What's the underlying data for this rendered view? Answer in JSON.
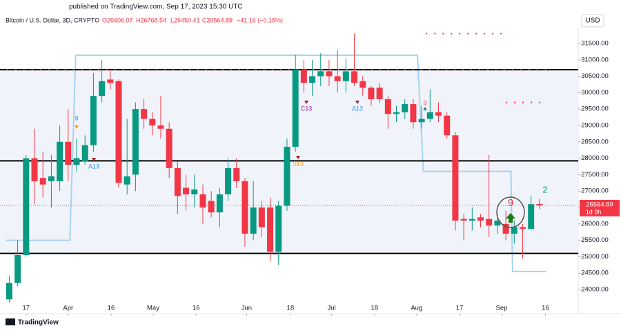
{
  "header": {
    "published": "published on TradingView.com, Sep 17, 2023 15:30 UTC",
    "symbol": "Bitcoin / U.S. Dollar, 3D, CRYPTO",
    "open": "O26606.07",
    "high": "H26768.54",
    "low": "L26450.41",
    "close": "C26564.89",
    "change": "−41.16 (−0.15%)",
    "currency": "USD"
  },
  "footer": {
    "brand": "TradingView"
  },
  "chart_data": {
    "type": "candlestick",
    "up_color": "#089981",
    "down_color": "#f23645",
    "xlim": [
      -1.1,
      67.6
    ],
    "ylim": [
      23265,
      32403
    ],
    "xticks": [
      {
        "value": 2,
        "label": "17"
      },
      {
        "value": 7,
        "label": "Apr"
      },
      {
        "value": 12.1,
        "label": "16"
      },
      {
        "value": 17.1,
        "label": "May"
      },
      {
        "value": 22.2,
        "label": "16"
      },
      {
        "value": 28.2,
        "label": "Jun"
      },
      {
        "value": 33.4,
        "label": "18"
      },
      {
        "value": 38.3,
        "label": "Jul"
      },
      {
        "value": 43.4,
        "label": "18"
      },
      {
        "value": 48.4,
        "label": "Aug"
      },
      {
        "value": 53.5,
        "label": "17"
      },
      {
        "value": 58.5,
        "label": "Sep"
      },
      {
        "value": 63.7,
        "label": "16"
      }
    ],
    "yticks": [
      {
        "value": 24000,
        "label": "24000.00"
      },
      {
        "value": 24500,
        "label": "24500.00"
      },
      {
        "value": 25000,
        "label": "25000.00"
      },
      {
        "value": 25500,
        "label": "25500.00"
      },
      {
        "value": 26000,
        "label": "26000.00"
      },
      {
        "value": 26500,
        "label": "26500.00"
      },
      {
        "value": 27000,
        "label": "27000.00"
      },
      {
        "value": 27500,
        "label": "27500.00"
      },
      {
        "value": 28000,
        "label": "28000.00"
      },
      {
        "value": 28500,
        "label": "28500.00"
      },
      {
        "value": 29000,
        "label": "29000.00"
      },
      {
        "value": 29500,
        "label": "29500.00"
      },
      {
        "value": 30000,
        "label": "30000.00"
      },
      {
        "value": 30500,
        "label": "30500.00"
      },
      {
        "value": 31000,
        "label": "31000.00"
      },
      {
        "value": 31500,
        "label": "31500.00"
      }
    ],
    "candles": [
      {
        "o": 23700,
        "h": 24400,
        "l": 23600,
        "c": 24200
      },
      {
        "o": 24200,
        "h": 25500,
        "l": 24100,
        "c": 25050
      },
      {
        "o": 25050,
        "h": 28100,
        "l": 25000,
        "c": 28000
      },
      {
        "o": 28000,
        "h": 28900,
        "l": 26600,
        "c": 27300
      },
      {
        "o": 27400,
        "h": 28200,
        "l": 26800,
        "c": 27200
      },
      {
        "o": 27300,
        "h": 28100,
        "l": 26500,
        "c": 27450
      },
      {
        "o": 27300,
        "h": 29000,
        "l": 27000,
        "c": 28500
      },
      {
        "o": 28500,
        "h": 29500,
        "l": 27300,
        "c": 27800
      },
      {
        "o": 27800,
        "h": 28600,
        "l": 27600,
        "c": 28000
      },
      {
        "o": 27900,
        "h": 28700,
        "l": 27800,
        "c": 28400
      },
      {
        "o": 28400,
        "h": 30600,
        "l": 28200,
        "c": 29900
      },
      {
        "o": 29900,
        "h": 31000,
        "l": 29700,
        "c": 30350
      },
      {
        "o": 30400,
        "h": 30700,
        "l": 30100,
        "c": 30300
      },
      {
        "o": 30350,
        "h": 30400,
        "l": 27100,
        "c": 27250
      },
      {
        "o": 27200,
        "h": 29200,
        "l": 26900,
        "c": 27450
      },
      {
        "o": 27500,
        "h": 29700,
        "l": 27000,
        "c": 29500
      },
      {
        "o": 29500,
        "h": 29800,
        "l": 28900,
        "c": 29200
      },
      {
        "o": 29200,
        "h": 29400,
        "l": 28700,
        "c": 29000
      },
      {
        "o": 29000,
        "h": 29900,
        "l": 28600,
        "c": 28900
      },
      {
        "o": 28900,
        "h": 29100,
        "l": 27400,
        "c": 27700
      },
      {
        "o": 27700,
        "h": 27900,
        "l": 26300,
        "c": 26850
      },
      {
        "o": 27100,
        "h": 27500,
        "l": 26400,
        "c": 26900
      },
      {
        "o": 26900,
        "h": 27500,
        "l": 26500,
        "c": 27050
      },
      {
        "o": 26900,
        "h": 27200,
        "l": 26000,
        "c": 26500
      },
      {
        "o": 26700,
        "h": 27000,
        "l": 26200,
        "c": 26350
      },
      {
        "o": 26350,
        "h": 27100,
        "l": 25900,
        "c": 26900
      },
      {
        "o": 26900,
        "h": 28000,
        "l": 26700,
        "c": 27700
      },
      {
        "o": 27700,
        "h": 28000,
        "l": 27100,
        "c": 27300
      },
      {
        "o": 27300,
        "h": 27400,
        "l": 25300,
        "c": 25700
      },
      {
        "o": 25700,
        "h": 27300,
        "l": 25500,
        "c": 26500
      },
      {
        "o": 26500,
        "h": 26700,
        "l": 25600,
        "c": 25900
      },
      {
        "o": 26500,
        "h": 26800,
        "l": 24850,
        "c": 25150
      },
      {
        "o": 25150,
        "h": 26700,
        "l": 24750,
        "c": 26550
      },
      {
        "o": 26550,
        "h": 28600,
        "l": 26400,
        "c": 28350
      },
      {
        "o": 28350,
        "h": 31150,
        "l": 28200,
        "c": 30700
      },
      {
        "o": 30700,
        "h": 31000,
        "l": 30000,
        "c": 30300
      },
      {
        "o": 30300,
        "h": 31000,
        "l": 29900,
        "c": 30500
      },
      {
        "o": 30500,
        "h": 31200,
        "l": 30200,
        "c": 30650
      },
      {
        "o": 30650,
        "h": 31000,
        "l": 30200,
        "c": 30500
      },
      {
        "o": 30500,
        "h": 31300,
        "l": 30000,
        "c": 30350
      },
      {
        "o": 30350,
        "h": 31050,
        "l": 30000,
        "c": 30650
      },
      {
        "o": 30650,
        "h": 31800,
        "l": 30200,
        "c": 30300
      },
      {
        "o": 30350,
        "h": 30500,
        "l": 29900,
        "c": 30150
      },
      {
        "o": 30150,
        "h": 30200,
        "l": 29600,
        "c": 29800
      },
      {
        "o": 30150,
        "h": 30300,
        "l": 29700,
        "c": 29800
      },
      {
        "o": 29800,
        "h": 29900,
        "l": 28900,
        "c": 29350
      },
      {
        "o": 29350,
        "h": 29600,
        "l": 29100,
        "c": 29400
      },
      {
        "o": 29400,
        "h": 29800,
        "l": 29200,
        "c": 29650
      },
      {
        "o": 29650,
        "h": 29800,
        "l": 28900,
        "c": 29100
      },
      {
        "o": 29100,
        "h": 29600,
        "l": 28900,
        "c": 29200
      },
      {
        "o": 29200,
        "h": 30100,
        "l": 29100,
        "c": 29400
      },
      {
        "o": 29400,
        "h": 29700,
        "l": 29100,
        "c": 29300
      },
      {
        "o": 29300,
        "h": 29400,
        "l": 28600,
        "c": 28700
      },
      {
        "o": 28700,
        "h": 28800,
        "l": 25800,
        "c": 26100
      },
      {
        "o": 26150,
        "h": 26300,
        "l": 25500,
        "c": 26100
      },
      {
        "o": 26100,
        "h": 26500,
        "l": 25800,
        "c": 26150
      },
      {
        "o": 26200,
        "h": 26300,
        "l": 25900,
        "c": 26100
      },
      {
        "o": 26150,
        "h": 28100,
        "l": 25600,
        "c": 25950
      },
      {
        "o": 25950,
        "h": 26300,
        "l": 25700,
        "c": 26100
      },
      {
        "o": 26000,
        "h": 26400,
        "l": 25500,
        "c": 25700
      },
      {
        "o": 25700,
        "h": 26100,
        "l": 25400,
        "c": 25900
      },
      {
        "o": 25900,
        "h": 26000,
        "l": 24950,
        "c": 25850
      },
      {
        "o": 25850,
        "h": 26850,
        "l": 25800,
        "c": 26600
      },
      {
        "o": 26606.07,
        "h": 26768.54,
        "l": 26450.41,
        "c": 26564.89
      }
    ],
    "levels": [
      30700,
      27920,
      25100
    ],
    "level_color": "#000000",
    "trend_line": {
      "color": "#a7d3ef",
      "x": [
        -0.4,
        7.2,
        7.9,
        48.5,
        49.2,
        59.6,
        59.8,
        63.8
      ],
      "values": [
        25500,
        25500,
        31140,
        31140,
        27600,
        27600,
        24550,
        24550
      ]
    },
    "stop_dots": [
      {
        "from": -0.3,
        "to": 64,
        "value": 30700
      },
      {
        "from": 49.5,
        "to": 58.8,
        "value": 31800
      },
      {
        "from": 59,
        "to": 63.8,
        "value": 29700
      }
    ],
    "annotations": [
      {
        "text": "9",
        "color": "#2196f3"
      },
      {
        "text": "A13",
        "color": "#2196f3"
      },
      {
        "text": "C13",
        "color": "#9c27b0"
      },
      {
        "text": "S13",
        "color": "#ff9800"
      },
      {
        "text": "A13",
        "color": "#2196f3"
      },
      {
        "text": "9",
        "color": "#f23645"
      },
      {
        "text": "9",
        "color": "#f23645"
      },
      {
        "text": "2",
        "color": "#089981"
      }
    ],
    "last_price": {
      "value": 26564.89,
      "label": "26564.89",
      "countdown": "1d 9h"
    }
  }
}
